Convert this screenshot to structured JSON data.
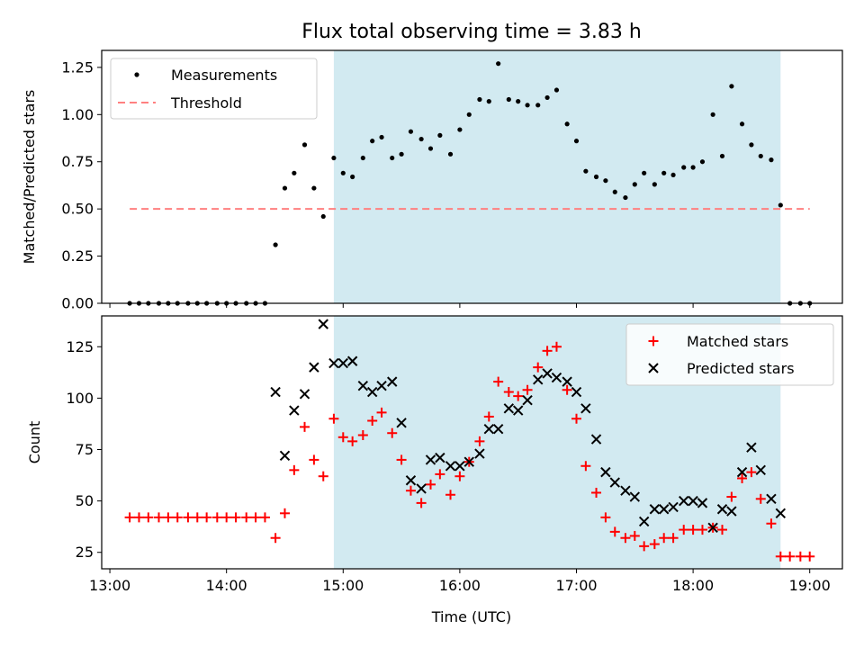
{
  "chart_data": {
    "type": "scatter",
    "title": "Flux total observing time = 3.83 h",
    "xlabel": "Time (UTC)",
    "x_tick_labels": [
      "13:00",
      "14:00",
      "15:00",
      "16:00",
      "17:00",
      "18:00",
      "19:00"
    ],
    "x_tick_hours": [
      13,
      14,
      15,
      16,
      17,
      18,
      19
    ],
    "xlim": [
      12.93,
      19.28
    ],
    "shaded_span": [
      14.92,
      18.75
    ],
    "colors": {
      "shade": "#add8e6",
      "measurements": "#000000",
      "threshold": "#ff8080",
      "matched": "#ff0000",
      "predicted": "#000000"
    },
    "panels": [
      {
        "ylabel": "Matched/Predicted stars",
        "ylim": [
          0,
          1.34
        ],
        "yticks": [
          0.0,
          0.25,
          0.5,
          0.75,
          1.0,
          1.25
        ],
        "ytick_labels": [
          "0.00",
          "0.25",
          "0.50",
          "0.75",
          "1.00",
          "1.25"
        ],
        "legend_position": "upper-left",
        "threshold": {
          "name": "Threshold",
          "value": 0.5,
          "x_range": [
            13.17,
            19.0
          ]
        },
        "series": [
          {
            "name": "Measurements",
            "marker": "dot",
            "x": [
              13.17,
              13.25,
              13.33,
              13.42,
              13.5,
              13.58,
              13.67,
              13.75,
              13.83,
              13.92,
              14.0,
              14.08,
              14.17,
              14.25,
              14.33,
              14.42,
              14.5,
              14.58,
              14.67,
              14.75,
              14.83,
              14.92,
              15.0,
              15.08,
              15.17,
              15.25,
              15.33,
              15.42,
              15.5,
              15.58,
              15.67,
              15.75,
              15.83,
              15.92,
              16.0,
              16.08,
              16.17,
              16.25,
              16.33,
              16.42,
              16.5,
              16.58,
              16.67,
              16.75,
              16.83,
              16.92,
              17.0,
              17.08,
              17.17,
              17.25,
              17.33,
              17.42,
              17.5,
              17.58,
              17.67,
              17.75,
              17.83,
              17.92,
              18.0,
              18.08,
              18.17,
              18.25,
              18.33,
              18.42,
              18.5,
              18.58,
              18.67,
              18.75,
              18.83,
              18.92,
              19.0
            ],
            "y": [
              0,
              0,
              0,
              0,
              0,
              0,
              0,
              0,
              0,
              0,
              0,
              0,
              0,
              0,
              0,
              0.31,
              0.61,
              0.69,
              0.84,
              0.61,
              0.46,
              0.77,
              0.69,
              0.67,
              0.77,
              0.86,
              0.88,
              0.77,
              0.79,
              0.91,
              0.87,
              0.82,
              0.89,
              0.79,
              0.92,
              1.0,
              1.08,
              1.07,
              1.27,
              1.08,
              1.07,
              1.05,
              1.05,
              1.09,
              1.13,
              0.95,
              0.86,
              0.7,
              0.67,
              0.65,
              0.59,
              0.56,
              0.63,
              0.69,
              0.63,
              0.69,
              0.68,
              0.72,
              0.72,
              0.75,
              1.0,
              0.78,
              1.15,
              0.95,
              0.84,
              0.78,
              0.76,
              0.52,
              0,
              0,
              0
            ]
          }
        ]
      },
      {
        "ylabel": "Count",
        "ylim": [
          17,
          140
        ],
        "yticks": [
          25,
          50,
          75,
          100,
          125
        ],
        "ytick_labels": [
          "25",
          "50",
          "75",
          "100",
          "125"
        ],
        "legend_position": "upper-right",
        "series": [
          {
            "name": "Matched stars",
            "marker": "plus",
            "x": [
              13.17,
              13.25,
              13.33,
              13.42,
              13.5,
              13.58,
              13.67,
              13.75,
              13.83,
              13.92,
              14.0,
              14.08,
              14.17,
              14.25,
              14.33,
              14.42,
              14.5,
              14.58,
              14.67,
              14.75,
              14.83,
              14.92,
              15.0,
              15.08,
              15.17,
              15.25,
              15.33,
              15.42,
              15.5,
              15.58,
              15.67,
              15.75,
              15.83,
              15.92,
              16.0,
              16.08,
              16.17,
              16.25,
              16.33,
              16.42,
              16.5,
              16.58,
              16.67,
              16.75,
              16.83,
              16.92,
              17.0,
              17.08,
              17.17,
              17.25,
              17.33,
              17.42,
              17.5,
              17.58,
              17.67,
              17.75,
              17.83,
              17.92,
              18.0,
              18.08,
              18.17,
              18.25,
              18.33,
              18.42,
              18.5,
              18.58,
              18.67,
              18.75,
              18.83,
              18.92,
              19.0
            ],
            "y": [
              42,
              42,
              42,
              42,
              42,
              42,
              42,
              42,
              42,
              42,
              42,
              42,
              42,
              42,
              42,
              32,
              44,
              65,
              86,
              70,
              62,
              90,
              81,
              79,
              82,
              89,
              93,
              83,
              70,
              55,
              49,
              58,
              63,
              53,
              62,
              69,
              79,
              91,
              108,
              103,
              101,
              104,
              115,
              123,
              125,
              104,
              90,
              67,
              54,
              42,
              35,
              32,
              33,
              28,
              29,
              32,
              32,
              36,
              36,
              36,
              37,
              36,
              52,
              61,
              64,
              51,
              39,
              23,
              23,
              23,
              23
            ]
          },
          {
            "name": "Predicted stars",
            "marker": "x",
            "x": [
              14.42,
              14.5,
              14.58,
              14.67,
              14.75,
              14.83,
              14.92,
              15.0,
              15.08,
              15.17,
              15.25,
              15.33,
              15.42,
              15.5,
              15.58,
              15.67,
              15.75,
              15.83,
              15.92,
              16.0,
              16.08,
              16.17,
              16.25,
              16.33,
              16.42,
              16.5,
              16.58,
              16.67,
              16.75,
              16.83,
              16.92,
              17.0,
              17.08,
              17.17,
              17.25,
              17.33,
              17.42,
              17.5,
              17.58,
              17.67,
              17.75,
              17.83,
              17.92,
              18.0,
              18.08,
              18.17,
              18.25,
              18.33,
              18.42,
              18.5,
              18.58,
              18.67,
              18.75
            ],
            "y": [
              103,
              72,
              94,
              102,
              115,
              136,
              117,
              117,
              118,
              106,
              103,
              106,
              108,
              88,
              60,
              56,
              70,
              71,
              67,
              67,
              69,
              73,
              85,
              85,
              95,
              94,
              99,
              109,
              112,
              110,
              108,
              103,
              95,
              80,
              64,
              59,
              55,
              52,
              40,
              46,
              46,
              47,
              50,
              50,
              49,
              37,
              46,
              45,
              64,
              76,
              65,
              51,
              44
            ]
          }
        ]
      }
    ]
  }
}
